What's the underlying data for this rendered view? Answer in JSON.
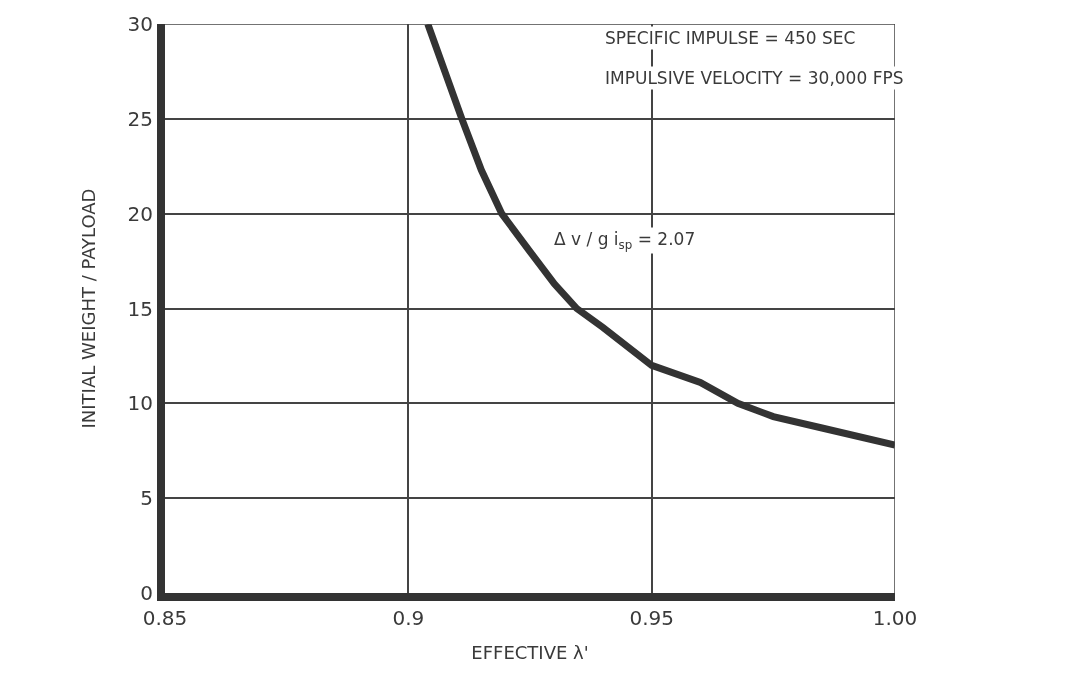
{
  "chart_data": {
    "type": "line",
    "xlabel": "EFFECTIVE λ'",
    "ylabel": "INITIAL WEIGHT / PAYLOAD",
    "annotations": [
      "SPECIFIC IMPULSE = 450 SEC",
      "IMPULSIVE VELOCITY = 30,000 FPS",
      "Δ v / g i$_{sp}$ = 2.07"
    ],
    "series": [
      {
        "color": "#333333",
        "x": [
          0.904,
          0.911,
          0.915,
          0.9192,
          0.925,
          0.93,
          0.9346,
          0.94,
          0.95,
          0.96,
          0.9677,
          0.975,
          0.985,
          1.0
        ],
        "values": [
          30,
          25,
          22.3,
          20,
          18,
          16.3,
          15,
          14,
          12,
          11.1,
          10,
          9.3,
          8.7,
          7.8
        ]
      }
    ],
    "xlim": [
      0.85,
      1.0
    ],
    "ylim": [
      0,
      30
    ],
    "xticks": [
      0.85,
      0.9,
      0.95,
      {
        "value": 1.0,
        "label": "1.00"
      }
    ],
    "yticks": [
      0,
      5,
      10,
      15,
      20,
      25,
      30
    ],
    "grid": true,
    "marker": "none",
    "line_style": "solid"
  }
}
